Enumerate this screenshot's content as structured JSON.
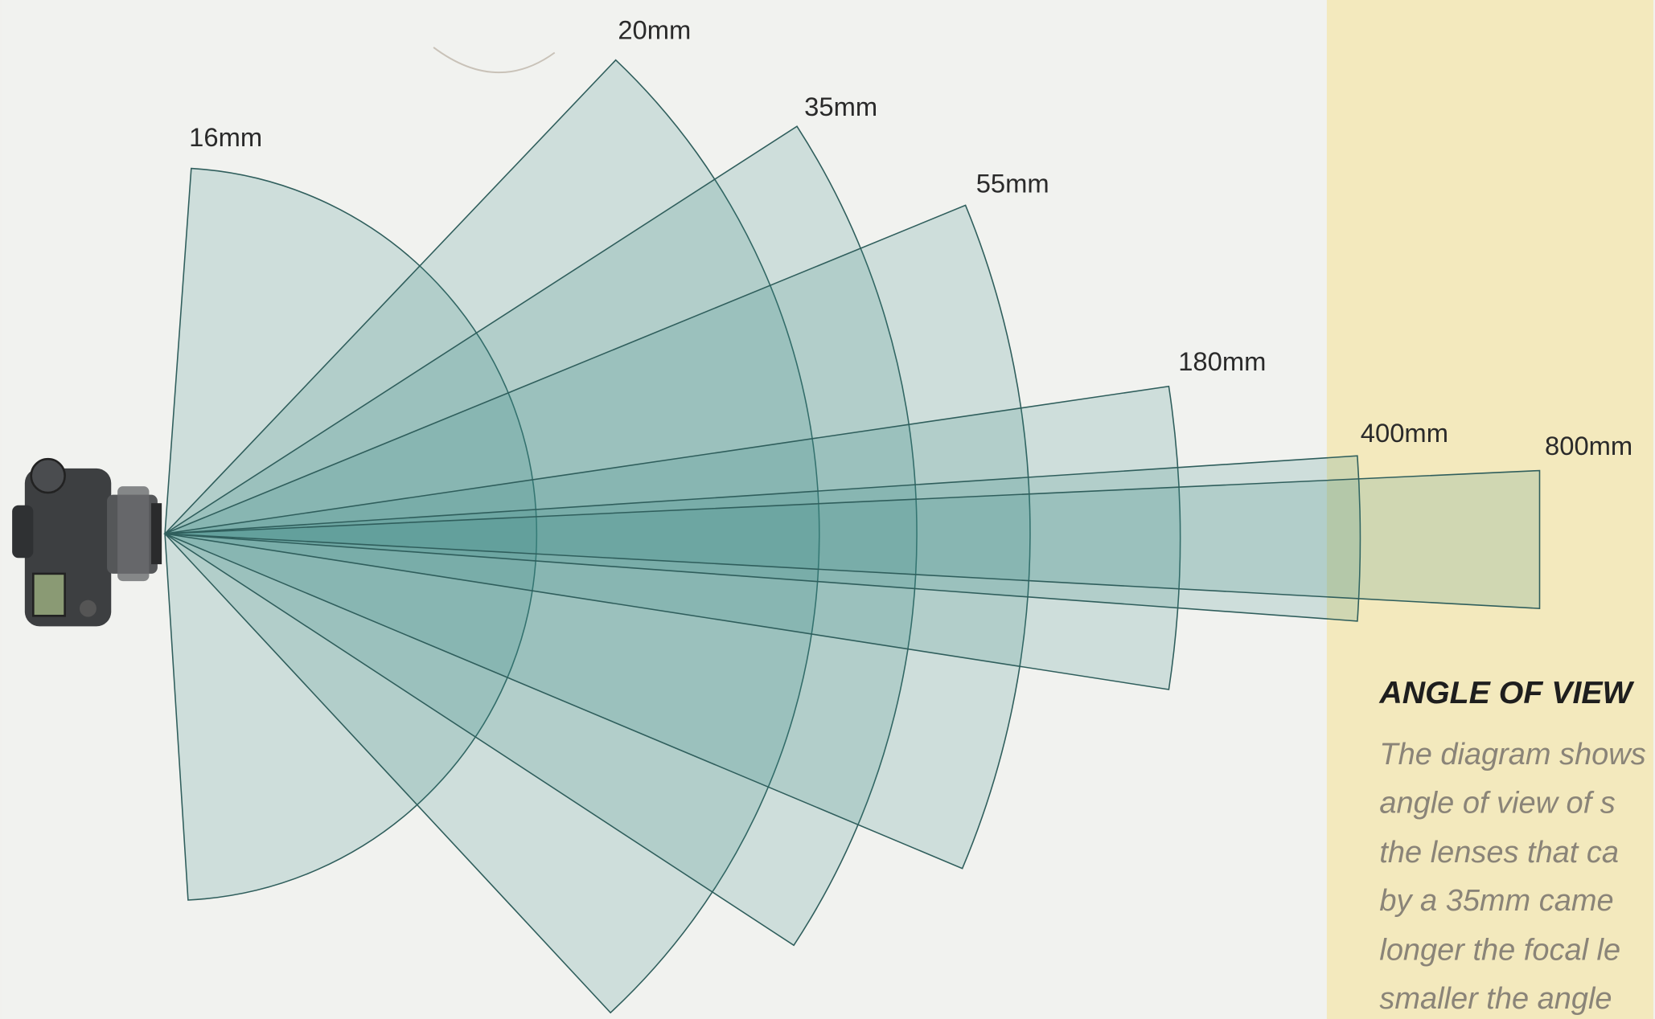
{
  "labels": [
    "16mm",
    "20mm",
    "35mm",
    "55mm",
    "180mm",
    "400mm",
    "800mm"
  ],
  "panel": {
    "title": "ANGLE OF VIEW",
    "lines": [
      "The diagram shows",
      "angle of view of s",
      "the lenses that ca",
      "by a 35mm came",
      "longer the focal le",
      "smaller the angle"
    ]
  }
}
